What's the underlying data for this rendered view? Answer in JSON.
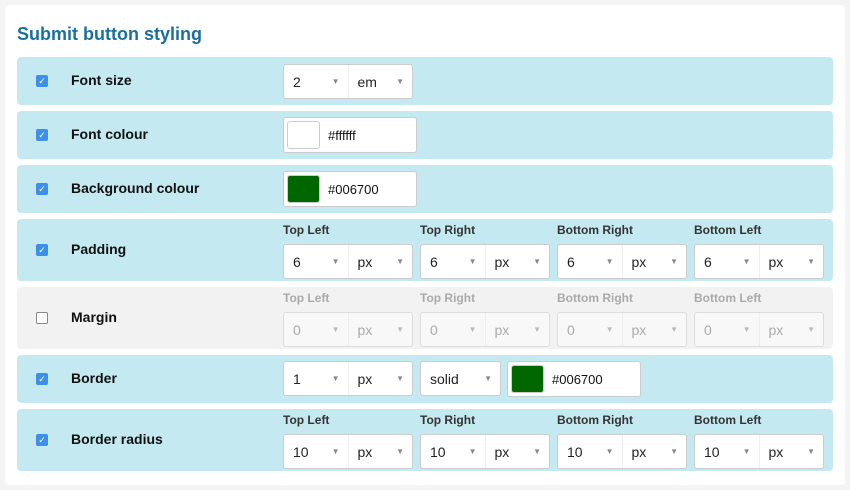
{
  "title": "Submit button styling",
  "colors": {
    "accent": "#1a6fa0",
    "row_bg": "#c4e9f1",
    "checkbox": "#3d8fe8"
  },
  "rows": [
    {
      "label": "Font size",
      "checked": true,
      "value": "2",
      "unit": "em"
    },
    {
      "label": "Font colour",
      "checked": true,
      "color": "#ffffff"
    },
    {
      "label": "Background colour",
      "checked": true,
      "color": "#006700"
    },
    {
      "label": "Padding",
      "checked": true,
      "corners": [
        {
          "label": "Top Left",
          "value": "6",
          "unit": "px"
        },
        {
          "label": "Top Right",
          "value": "6",
          "unit": "px"
        },
        {
          "label": "Bottom Right",
          "value": "6",
          "unit": "px"
        },
        {
          "label": "Bottom Left",
          "value": "6",
          "unit": "px"
        }
      ]
    },
    {
      "label": "Margin",
      "checked": false,
      "corners": [
        {
          "label": "Top Left",
          "value": "0",
          "unit": "px"
        },
        {
          "label": "Top Right",
          "value": "0",
          "unit": "px"
        },
        {
          "label": "Bottom Right",
          "value": "0",
          "unit": "px"
        },
        {
          "label": "Bottom Left",
          "value": "0",
          "unit": "px"
        }
      ]
    },
    {
      "label": "Border",
      "checked": true,
      "value": "1",
      "unit": "px",
      "style": "solid",
      "color": "#006700"
    },
    {
      "label": "Border radius",
      "checked": true,
      "corners": [
        {
          "label": "Top Left",
          "value": "10",
          "unit": "px"
        },
        {
          "label": "Top Right",
          "value": "10",
          "unit": "px"
        },
        {
          "label": "Bottom Right",
          "value": "10",
          "unit": "px"
        },
        {
          "label": "Bottom Left",
          "value": "10",
          "unit": "px"
        }
      ]
    }
  ]
}
